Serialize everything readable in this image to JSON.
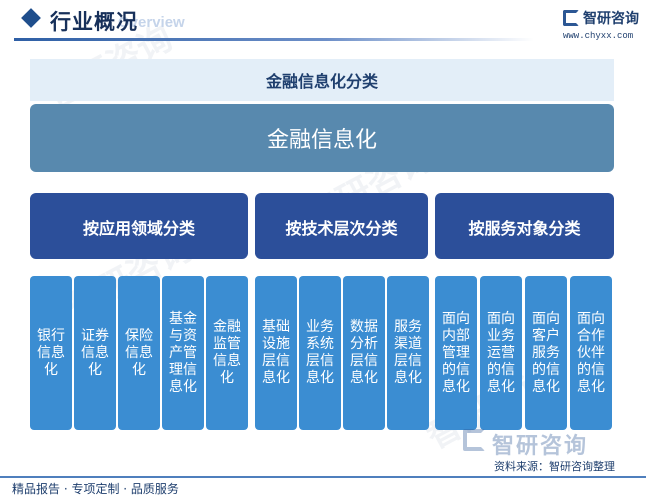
{
  "header": {
    "title": "行业概况",
    "subtitle_en": "Overview",
    "brand": "智研咨询",
    "url": "www.chyxx.com"
  },
  "diagram": {
    "title": "金融信息化分类",
    "root": "金融信息化",
    "categories": [
      {
        "label": "按应用领域分类"
      },
      {
        "label": "按技术层次分类"
      },
      {
        "label": "按服务对象分类"
      }
    ],
    "leaves": [
      "银行信息化",
      "证券信息化",
      "保险信息化",
      "基金与资产管理信息化",
      "金融监管信息化",
      "基础设施层信息化",
      "业务系统层信息化",
      "数据分析层信息化",
      "服务渠道层信息化",
      "面向内部管理的信息化",
      "面向业务运营的信息化",
      "面向客户服务的信息化",
      "面向合作伙伴的信息化"
    ]
  },
  "footer": {
    "brand_watermark": "智研咨询",
    "source": "资料来源：智研咨询整理",
    "tagline": "精品报告 · 专项定制 · 品质服务"
  },
  "colors": {
    "root": "#5889ae",
    "category": "#2c4f9a",
    "leaf": "#3b8dd2",
    "panel": "#e3eef8"
  }
}
